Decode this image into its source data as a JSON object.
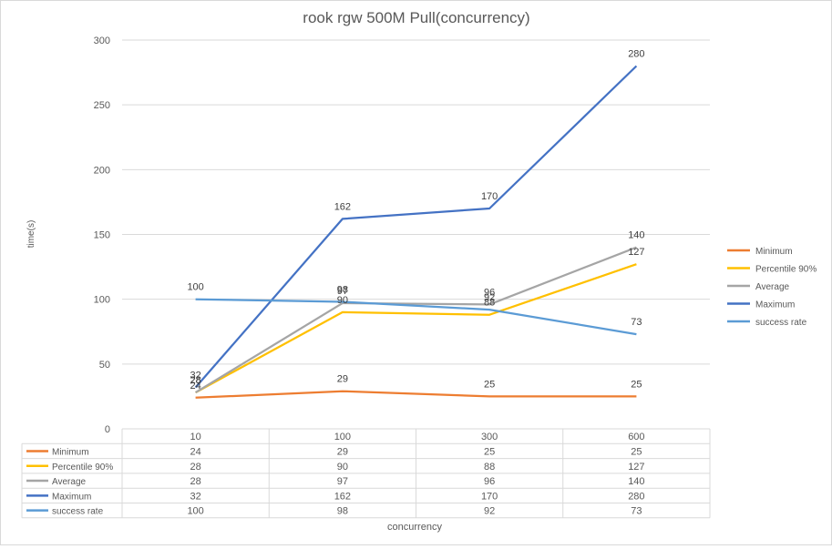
{
  "chart_data": {
    "type": "line",
    "title": "rook rgw 500M Pull(concurrency)",
    "xlabel": "concurrency",
    "ylabel": "time(s)",
    "categories": [
      "10",
      "100",
      "300",
      "600"
    ],
    "ylim": [
      0,
      300
    ],
    "yticks": [
      0,
      50,
      100,
      150,
      200,
      250,
      300
    ],
    "grid": true,
    "legend_position": "right",
    "data_table": true,
    "series": [
      {
        "name": "Minimum",
        "color": "#ed7d31",
        "values": [
          24,
          29,
          25,
          25
        ]
      },
      {
        "name": "Percentile 90%",
        "color": "#ffc000",
        "values": [
          28,
          90,
          88,
          127
        ]
      },
      {
        "name": "Average",
        "color": "#a5a5a5",
        "values": [
          28,
          97,
          96,
          140
        ]
      },
      {
        "name": "Maximum",
        "color": "#4472c4",
        "values": [
          32,
          162,
          170,
          280
        ]
      },
      {
        "name": "success rate",
        "color": "#5b9bd5",
        "values": [
          100,
          98,
          92,
          73
        ]
      }
    ]
  }
}
